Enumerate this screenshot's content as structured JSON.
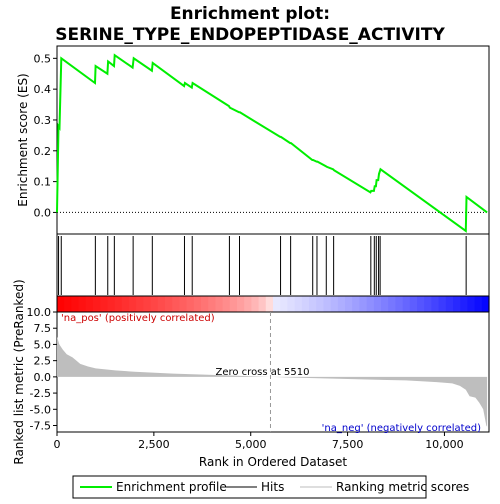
{
  "chart_data": {
    "type": "line",
    "title_lines": [
      "Enrichment plot:",
      "SERINE_TYPE_ENDOPEPTIDASE_ACTIVITY"
    ],
    "xlabel": "Rank in Ordered Dataset",
    "es_panel": {
      "ylabel": "Enrichment score (ES)",
      "ylim": [
        -0.07,
        0.54
      ],
      "yticks": [
        0.0,
        0.1,
        0.2,
        0.3,
        0.4,
        0.5
      ],
      "ytick_labels": [
        "0.0",
        "0.1",
        "0.2",
        "0.3",
        "0.4",
        "0.5"
      ],
      "series_name": "Enrichment profile",
      "line_color": "#00ee00",
      "points": [
        [
          0,
          0
        ],
        [
          40,
          0.28
        ],
        [
          65,
          0.275
        ],
        [
          70,
          0.3
        ],
        [
          110,
          0.5
        ],
        [
          980,
          0.42
        ],
        [
          995,
          0.475
        ],
        [
          1300,
          0.45
        ],
        [
          1320,
          0.49
        ],
        [
          1470,
          0.475
        ],
        [
          1490,
          0.51
        ],
        [
          1950,
          0.47
        ],
        [
          1980,
          0.5
        ],
        [
          2450,
          0.46
        ],
        [
          2470,
          0.485
        ],
        [
          3280,
          0.41
        ],
        [
          3300,
          0.42
        ],
        [
          3480,
          0.405
        ],
        [
          3500,
          0.42
        ],
        [
          4440,
          0.345
        ],
        [
          4460,
          0.34
        ],
        [
          4700,
          0.325
        ],
        [
          4720,
          0.325
        ],
        [
          5760,
          0.245
        ],
        [
          5780,
          0.245
        ],
        [
          6020,
          0.225
        ],
        [
          6040,
          0.225
        ],
        [
          6590,
          0.17
        ],
        [
          6610,
          0.17
        ],
        [
          6700,
          0.165
        ],
        [
          6720,
          0.165
        ],
        [
          6940,
          0.15
        ],
        [
          6960,
          0.148
        ],
        [
          7130,
          0.14
        ],
        [
          7150,
          0.137
        ],
        [
          8090,
          0.065
        ],
        [
          8110,
          0.07
        ],
        [
          8180,
          0.07
        ],
        [
          8200,
          0.085
        ],
        [
          8230,
          0.085
        ],
        [
          8250,
          0.105
        ],
        [
          8290,
          0.105
        ],
        [
          8310,
          0.125
        ],
        [
          8350,
          0.14
        ],
        [
          10550,
          -0.06
        ],
        [
          10570,
          0.05
        ],
        [
          11100,
          0.0
        ]
      ]
    },
    "hits_panel": {
      "series_name": "Hits",
      "positions": [
        40,
        110,
        990,
        1310,
        1480,
        1965,
        2460,
        3290,
        3490,
        4450,
        4710,
        5770,
        6030,
        6600,
        6710,
        6950,
        7140,
        8100,
        8190,
        8240,
        8300,
        8340,
        10560
      ]
    },
    "heatmap_bar": {
      "pos_color": "#ff0000",
      "neg_color": "#0000ff"
    },
    "rank_panel": {
      "ylabel": "Ranked list metric (PreRanked)",
      "ylim": [
        -8.5,
        10.0
      ],
      "yticks": [
        10.0,
        7.5,
        5.0,
        2.5,
        0.0,
        -2.5,
        -5.0,
        -7.5
      ],
      "ytick_labels": [
        "10.0",
        "7.5",
        "5.0",
        "2.5",
        "0.0",
        "-2.5",
        "-5.0",
        "-7.5"
      ],
      "series_name": "Ranking metric scores",
      "fill_color": "#bebebe",
      "zero_cross": 5510,
      "zero_cross_label": "Zero cross at 5510",
      "pos_label": "'na_pos' (positively correlated)",
      "pos_label_color": "#cc0000",
      "neg_label": "'na_neg' (negatively correlated)",
      "neg_label_color": "#0000cc",
      "profile": [
        [
          0,
          6.2
        ],
        [
          60,
          5.0
        ],
        [
          150,
          4.2
        ],
        [
          250,
          3.5
        ],
        [
          400,
          3.0
        ],
        [
          500,
          2.5
        ],
        [
          600,
          2.0
        ],
        [
          800,
          1.6
        ],
        [
          1000,
          1.3
        ],
        [
          1500,
          1.0
        ],
        [
          2000,
          0.8
        ],
        [
          3000,
          0.5
        ],
        [
          4000,
          0.3
        ],
        [
          5000,
          0.1
        ],
        [
          5510,
          0.0
        ],
        [
          6000,
          -0.1
        ],
        [
          7000,
          -0.25
        ],
        [
          8000,
          -0.4
        ],
        [
          9000,
          -0.55
        ],
        [
          9800,
          -0.8
        ],
        [
          10200,
          -1.0
        ],
        [
          10400,
          -1.4
        ],
        [
          10550,
          -2.0
        ],
        [
          10650,
          -3.0
        ],
        [
          10800,
          -3.2
        ],
        [
          10900,
          -4.0
        ],
        [
          11000,
          -5.0
        ],
        [
          11080,
          -7.5
        ],
        [
          11100,
          -7.7
        ]
      ]
    },
    "xlim": [
      0,
      11150
    ],
    "xticks": [
      0,
      2500,
      5000,
      7500,
      10000
    ],
    "xtick_labels": [
      "0",
      "2,500",
      "5,000",
      "7,500",
      "10,000"
    ]
  },
  "legend": {
    "enrichment": "Enrichment profile",
    "hits": "Hits",
    "ranking": "Ranking metric scores"
  }
}
